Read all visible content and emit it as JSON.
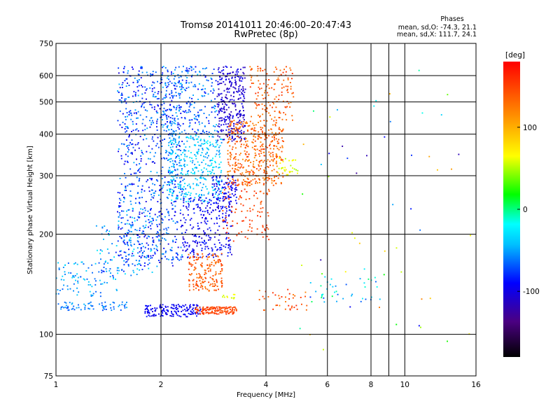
{
  "chart_data": {
    "type": "scatter",
    "title": "Tromsø 20141011 20:46:00–20:47:43",
    "subtitle": "RwPretec (8p)",
    "info_title": "Phases",
    "info_lines": [
      "mean, sd,O: -74.3, 21.1",
      "mean, sd,X: 111.7, 24.1"
    ],
    "xlabel": "Frequency [MHz]",
    "ylabel": "Stationary phase Virtual Height [km]",
    "x_scale": "log",
    "y_scale": "log",
    "xlim": [
      1,
      16
    ],
    "ylim": [
      75,
      750
    ],
    "x_ticks": [
      1,
      2,
      4,
      6,
      8,
      10,
      16
    ],
    "x_tick_labels": [
      "1",
      "2",
      "4",
      "6",
      "8",
      "10",
      "16"
    ],
    "x_minor_ticks": [
      9
    ],
    "y_ticks": [
      75,
      100,
      200,
      300,
      400,
      500,
      600,
      750
    ],
    "y_tick_labels": [
      "75",
      "100",
      "200",
      "300",
      "400",
      "500",
      "600",
      "750"
    ],
    "colorbar": {
      "label": "[deg]",
      "range": [
        -180,
        180
      ],
      "ticks": [
        100,
        0,
        -100
      ],
      "tick_labels": [
        "100",
        "0",
        "-100"
      ],
      "colormap": "rainbow"
    },
    "series": [
      {
        "kind": "cluster",
        "fmin": 1.0,
        "fmax": 1.6,
        "hmin": 118,
        "hmax": 125,
        "phase": -60,
        "spread": 15,
        "count": 70
      },
      {
        "kind": "cluster",
        "fmin": 1.0,
        "fmax": 1.5,
        "hmin": 130,
        "hmax": 165,
        "phase": -50,
        "spread": 20,
        "count": 90
      },
      {
        "kind": "cluster",
        "fmin": 1.3,
        "fmax": 1.9,
        "hmin": 150,
        "hmax": 240,
        "phase": -55,
        "spread": 30,
        "count": 120
      },
      {
        "kind": "cluster",
        "fmin": 1.5,
        "fmax": 2.3,
        "hmin": 160,
        "hmax": 640,
        "phase": -75,
        "spread": 30,
        "count": 800
      },
      {
        "kind": "cluster",
        "fmin": 2.1,
        "fmax": 3.0,
        "hmin": 250,
        "hmax": 400,
        "phase": -40,
        "spread": 20,
        "count": 360
      },
      {
        "kind": "cluster",
        "fmin": 2.0,
        "fmax": 2.9,
        "hmin": 400,
        "hmax": 640,
        "phase": -65,
        "spread": 25,
        "count": 260
      },
      {
        "kind": "cluster",
        "fmin": 2.3,
        "fmax": 3.2,
        "hmin": 170,
        "hmax": 260,
        "phase": -95,
        "spread": 15,
        "count": 260
      },
      {
        "kind": "cluster",
        "fmin": 2.9,
        "fmax": 3.5,
        "hmin": 380,
        "hmax": 640,
        "phase": -105,
        "spread": 15,
        "count": 300
      },
      {
        "kind": "cluster",
        "fmin": 2.8,
        "fmax": 3.3,
        "hmin": 240,
        "hmax": 300,
        "phase": -95,
        "spread": 15,
        "count": 90
      },
      {
        "kind": "cluster",
        "fmin": 1.8,
        "fmax": 2.6,
        "hmin": 113,
        "hmax": 123,
        "phase": -95,
        "spread": 10,
        "count": 160
      },
      {
        "kind": "cluster",
        "fmin": 2.4,
        "fmax": 3.0,
        "hmin": 135,
        "hmax": 175,
        "phase": 140,
        "spread": 15,
        "count": 170
      },
      {
        "kind": "cluster",
        "fmin": 2.5,
        "fmax": 3.3,
        "hmin": 115,
        "hmax": 121,
        "phase": 150,
        "spread": 10,
        "count": 130
      },
      {
        "kind": "cluster",
        "fmin": 3.1,
        "fmax": 4.5,
        "hmin": 280,
        "hmax": 440,
        "phase": 135,
        "spread": 20,
        "count": 420
      },
      {
        "kind": "cluster",
        "fmin": 3.6,
        "fmax": 4.8,
        "hmin": 440,
        "hmax": 640,
        "phase": 140,
        "spread": 20,
        "count": 140
      },
      {
        "kind": "cluster",
        "fmin": 3.0,
        "fmax": 4.1,
        "hmin": 190,
        "hmax": 290,
        "phase": 150,
        "spread": 15,
        "count": 110
      },
      {
        "kind": "cluster",
        "fmin": 4.3,
        "fmax": 5.0,
        "hmin": 300,
        "hmax": 340,
        "phase": 60,
        "spread": 15,
        "count": 30
      },
      {
        "kind": "cluster",
        "fmin": 3.0,
        "fmax": 3.3,
        "hmin": 128,
        "hmax": 132,
        "phase": 60,
        "spread": 10,
        "count": 12
      },
      {
        "kind": "cluster",
        "fmin": 3.8,
        "fmax": 5.3,
        "hmin": 118,
        "hmax": 140,
        "phase": 140,
        "spread": 25,
        "count": 40
      },
      {
        "kind": "cluster",
        "fmin": 5.3,
        "fmax": 8.5,
        "hmin": 125,
        "hmax": 150,
        "phase": -30,
        "spread": 40,
        "count": 40
      },
      {
        "kind": "cluster",
        "fmin": 5.0,
        "fmax": 16.0,
        "hmin": 90,
        "hmax": 650,
        "phase": 0,
        "spread": 130,
        "count": 55
      }
    ]
  }
}
